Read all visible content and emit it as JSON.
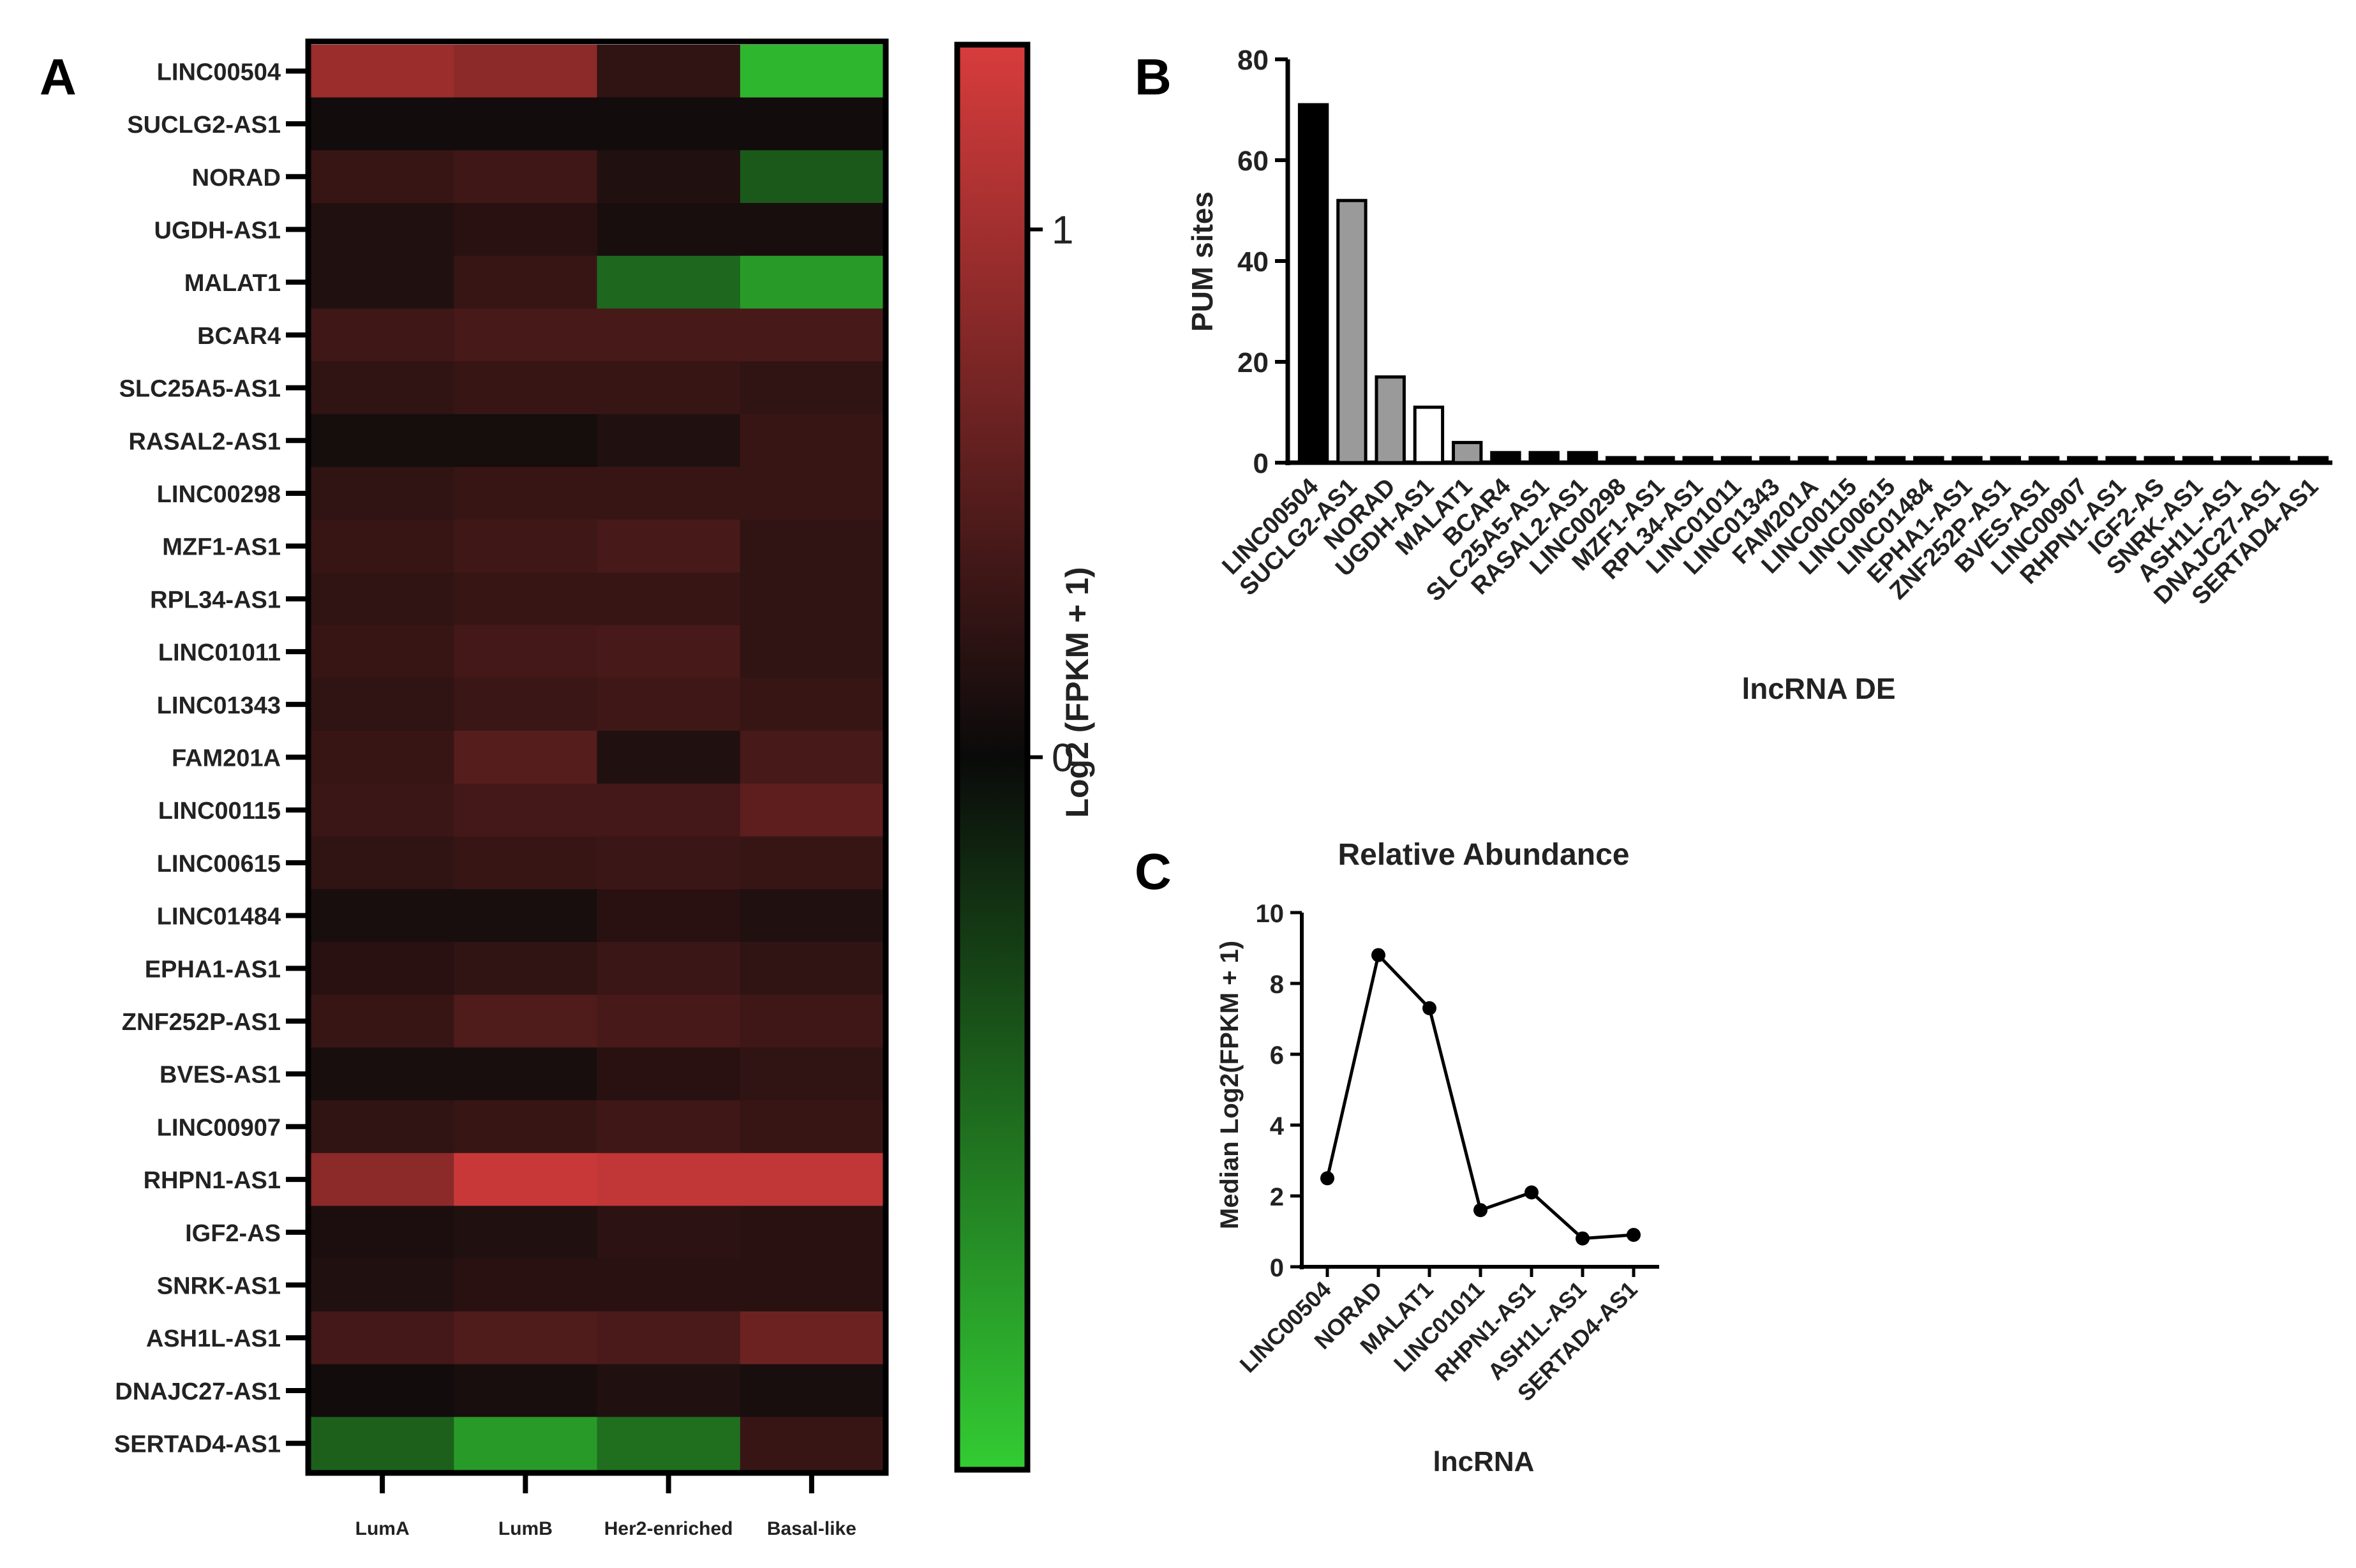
{
  "panels": {
    "a": "A",
    "b": "B",
    "c": "C"
  },
  "colors": {
    "low": "#33cc33",
    "mid": "#0a0a0a",
    "high": "#d83c3c",
    "bar_black": "#000000",
    "bar_grey": "#9a9a9a",
    "bar_white": "#ffffff"
  },
  "chart_data": [
    {
      "type": "heatmap",
      "panel": "A",
      "columns": [
        "LumA",
        "LumB",
        "Her2-enriched",
        "Basal-like"
      ],
      "rows": [
        "LINC00504",
        "SUCLG2-AS1",
        "NORAD",
        "UGDH-AS1",
        "MALAT1",
        "BCAR4",
        "SLC25A5-AS1",
        "RASAL2-AS1",
        "LINC00298",
        "MZF1-AS1",
        "RPL34-AS1",
        "LINC01011",
        "LINC01343",
        "FAM201A",
        "LINC00115",
        "LINC00615",
        "LINC01484",
        "EPHA1-AS1",
        "ZNF252P-AS1",
        "BVES-AS1",
        "LINC00907",
        "RHPN1-AS1",
        "IGF2-AS",
        "SNRK-AS1",
        "ASH1L-AS1",
        "DNAJC27-AS1",
        "SERTAD4-AS1"
      ],
      "values": [
        [
          0.95,
          0.85,
          0.25,
          -1.2
        ],
        [
          0.05,
          0.05,
          0.05,
          0.05
        ],
        [
          0.3,
          0.35,
          0.15,
          -0.55
        ],
        [
          0.15,
          0.2,
          0.1,
          0.1
        ],
        [
          0.15,
          0.3,
          -0.65,
          -1.0
        ],
        [
          0.35,
          0.4,
          0.4,
          0.4
        ],
        [
          0.25,
          0.3,
          0.3,
          0.25
        ],
        [
          0.08,
          0.08,
          0.15,
          0.3
        ],
        [
          0.25,
          0.3,
          0.3,
          0.3
        ],
        [
          0.3,
          0.35,
          0.4,
          0.25
        ],
        [
          0.25,
          0.3,
          0.3,
          0.25
        ],
        [
          0.3,
          0.38,
          0.4,
          0.25
        ],
        [
          0.25,
          0.32,
          0.35,
          0.3
        ],
        [
          0.3,
          0.5,
          0.15,
          0.4
        ],
        [
          0.32,
          0.38,
          0.38,
          0.55
        ],
        [
          0.25,
          0.3,
          0.32,
          0.3
        ],
        [
          0.1,
          0.1,
          0.2,
          0.15
        ],
        [
          0.2,
          0.25,
          0.32,
          0.25
        ],
        [
          0.3,
          0.45,
          0.4,
          0.35
        ],
        [
          0.1,
          0.1,
          0.2,
          0.25
        ],
        [
          0.25,
          0.3,
          0.35,
          0.3
        ],
        [
          0.85,
          1.25,
          1.2,
          1.2
        ],
        [
          0.12,
          0.15,
          0.22,
          0.2
        ],
        [
          0.15,
          0.2,
          0.2,
          0.2
        ],
        [
          0.38,
          0.45,
          0.42,
          0.65
        ],
        [
          0.05,
          0.1,
          0.15,
          0.1
        ],
        [
          -0.6,
          -1.0,
          -0.7,
          0.3
        ]
      ],
      "colorbar": {
        "label": "Log2 (FPKM + 1)",
        "ticks": [
          1,
          0
        ],
        "range": [
          -1.35,
          1.35
        ]
      }
    },
    {
      "type": "bar",
      "panel": "B",
      "categories": [
        "LINC00504",
        "SUCLG2-AS1",
        "NORAD",
        "UGDH-AS1",
        "MALAT1",
        "BCAR4",
        "SLC25A5-AS1",
        "RASAL2-AS1",
        "LINC00298",
        "MZF1-AS1",
        "RPL34-AS1",
        "LINC01011",
        "LINC01343",
        "FAM201A",
        "LINC00115",
        "LINC00615",
        "LINC01484",
        "EPHA1-AS1",
        "ZNF252P-AS1",
        "BVES-AS1",
        "LINC00907",
        "RHPN1-AS1",
        "IGF2-AS",
        "SNRK-AS1",
        "ASH1L-AS1",
        "DNAJC27-AS1",
        "SERTAD4-AS1"
      ],
      "values": [
        71,
        52,
        17,
        11,
        4,
        2,
        2,
        2,
        1,
        1,
        1,
        1,
        1,
        1,
        1,
        1,
        1,
        1,
        1,
        1,
        1,
        1,
        1,
        1,
        1,
        1,
        1
      ],
      "bar_fill": [
        "black",
        "grey",
        "grey",
        "white",
        "grey",
        "black",
        "black",
        "black",
        "black",
        "black",
        "black",
        "black",
        "black",
        "black",
        "black",
        "black",
        "black",
        "black",
        "black",
        "black",
        "black",
        "black",
        "black",
        "black",
        "black",
        "black",
        "black"
      ],
      "xlabel": "lncRNA DE",
      "ylabel": "PUM sites",
      "ylim": [
        0,
        80
      ],
      "yticks": [
        0,
        20,
        40,
        60,
        80
      ]
    },
    {
      "type": "line",
      "panel": "C",
      "title": "Relative Abundance",
      "categories": [
        "LINC00504",
        "NORAD",
        "MALAT1",
        "LINC01011",
        "RHPN1-AS1",
        "ASH1L-AS1",
        "SERTAD4-AS1"
      ],
      "values": [
        2.5,
        8.8,
        7.3,
        1.6,
        2.1,
        0.8,
        0.9
      ],
      "xlabel": "lncRNA",
      "ylabel": "Median Log2(FPKM + 1)",
      "ylim": [
        0,
        10
      ],
      "yticks": [
        0,
        2,
        4,
        6,
        8,
        10
      ]
    }
  ]
}
